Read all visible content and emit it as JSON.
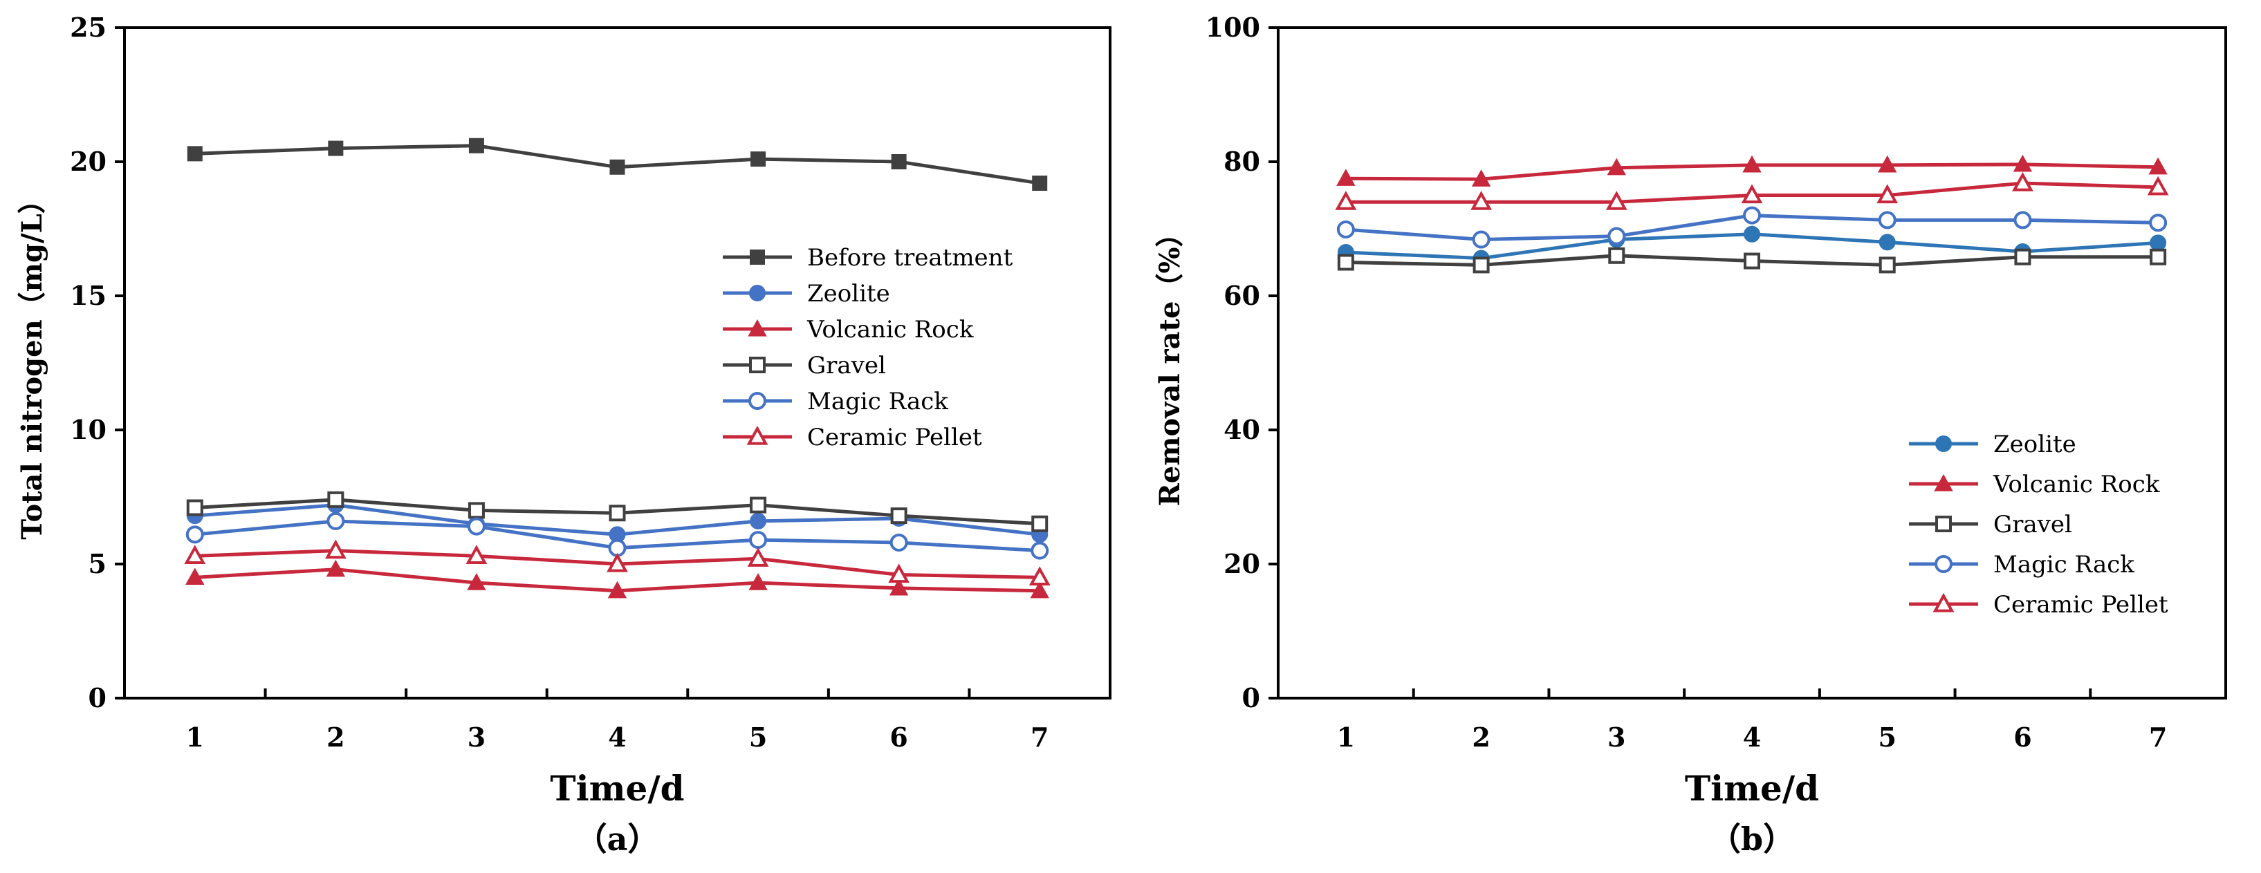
{
  "chart_data": [
    {
      "type": "line",
      "panel_label": "（a）",
      "xlabel": "Time/d",
      "ylabel": "Total nitrogen（mg/L）",
      "x": [
        1,
        2,
        3,
        4,
        5,
        6,
        7
      ],
      "x_tick_labels": [
        "1",
        "2",
        "3",
        "4",
        "5",
        "6",
        "7"
      ],
      "ylim": [
        0,
        25
      ],
      "y_ticks": [
        0,
        5,
        10,
        15,
        20,
        25
      ],
      "y_tick_labels": [
        "0",
        "5",
        "10",
        "15",
        "20",
        "25"
      ],
      "grid": false,
      "legend_position": "center-right",
      "series": [
        {
          "name": "Before treatment",
          "color": "#404040",
          "marker": "square-filled",
          "values": [
            20.3,
            20.5,
            20.6,
            19.8,
            20.1,
            20.0,
            19.2
          ]
        },
        {
          "name": "Zeolite",
          "color": "#4472C4",
          "marker": "circle-filled",
          "values": [
            6.8,
            7.2,
            6.5,
            6.1,
            6.6,
            6.7,
            6.1
          ]
        },
        {
          "name": "Volcanic Rock",
          "color": "#C8283C",
          "marker": "triangle-filled",
          "values": [
            4.5,
            4.8,
            4.3,
            4.0,
            4.3,
            4.1,
            4.0
          ]
        },
        {
          "name": "Gravel",
          "color": "#404040",
          "marker": "square-open",
          "values": [
            7.1,
            7.4,
            7.0,
            6.9,
            7.2,
            6.8,
            6.5
          ]
        },
        {
          "name": "Magic Rack",
          "color": "#4472C4",
          "marker": "circle-open",
          "values": [
            6.1,
            6.6,
            6.4,
            5.6,
            5.9,
            5.8,
            5.5
          ]
        },
        {
          "name": "Ceramic Pellet",
          "color": "#C8283C",
          "marker": "triangle-open",
          "values": [
            5.3,
            5.5,
            5.3,
            5.0,
            5.2,
            4.6,
            4.5
          ]
        }
      ]
    },
    {
      "type": "line",
      "panel_label": "（b）",
      "xlabel": "Time/d",
      "ylabel": "Removal rate（%）",
      "x": [
        1,
        2,
        3,
        4,
        5,
        6,
        7
      ],
      "x_tick_labels": [
        "1",
        "2",
        "3",
        "4",
        "5",
        "6",
        "7"
      ],
      "ylim": [
        0,
        100
      ],
      "y_ticks": [
        0,
        20,
        40,
        60,
        80,
        100
      ],
      "y_tick_labels": [
        "0",
        "20",
        "40",
        "60",
        "80",
        "100"
      ],
      "grid": false,
      "legend_position": "bottom-right",
      "series": [
        {
          "name": "Zeolite",
          "color": "#2E75B6",
          "marker": "circle-filled",
          "values": [
            66.5,
            65.6,
            68.4,
            69.2,
            68.0,
            66.6,
            67.9
          ]
        },
        {
          "name": "Volcanic Rock",
          "color": "#C8283C",
          "marker": "triangle-filled",
          "values": [
            77.5,
            77.4,
            79.1,
            79.5,
            79.5,
            79.6,
            79.2
          ]
        },
        {
          "name": "Gravel",
          "color": "#404040",
          "marker": "square-open",
          "values": [
            65.0,
            64.6,
            66.0,
            65.2,
            64.6,
            65.8,
            65.8
          ]
        },
        {
          "name": "Magic Rack",
          "color": "#4472C4",
          "marker": "circle-open",
          "values": [
            69.9,
            68.4,
            68.9,
            72.0,
            71.3,
            71.3,
            70.9
          ]
        },
        {
          "name": "Ceramic Pellet",
          "color": "#C8283C",
          "marker": "triangle-open",
          "values": [
            74.0,
            74.0,
            74.0,
            75.0,
            75.0,
            76.8,
            76.2
          ]
        }
      ]
    }
  ]
}
